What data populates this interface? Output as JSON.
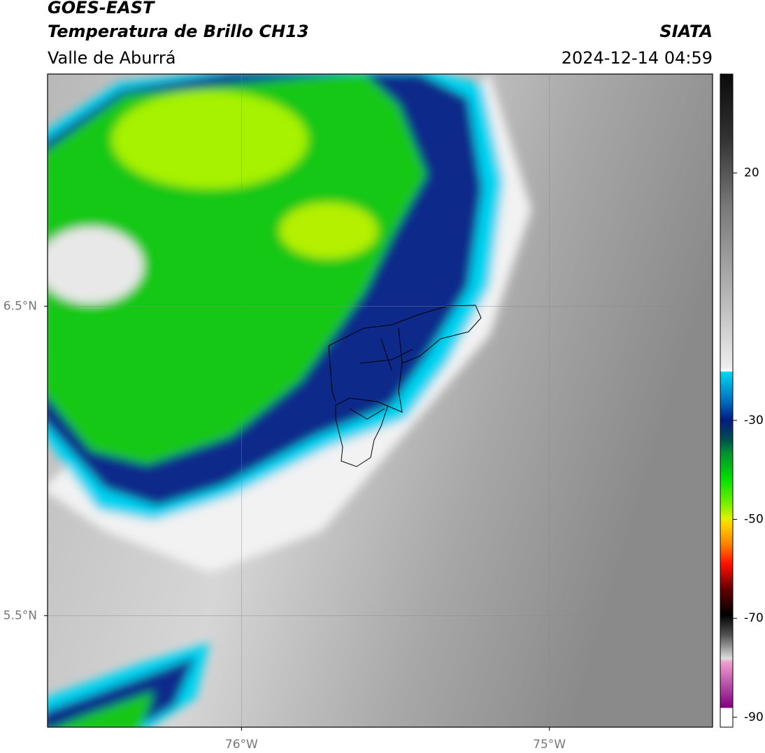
{
  "header": {
    "title": "GOES-EAST",
    "subtitle": "Temperatura de Brillo CH13",
    "source": "SIATA",
    "region": "Valle de Aburrá",
    "timestamp": "2024-12-14 04:59"
  },
  "map": {
    "xlim": [
      -76.63,
      -74.47
    ],
    "ylim": [
      5.14,
      7.25
    ],
    "xticks": [
      {
        "value": -76,
        "label": "76°W"
      },
      {
        "value": -75,
        "label": "75°W"
      }
    ],
    "yticks": [
      {
        "value": 6.5,
        "label": "6.5°N"
      },
      {
        "value": 5.5,
        "label": "5.5°N"
      }
    ],
    "grid": true
  },
  "colorbar": {
    "lim": [
      -92,
      40
    ],
    "ticks": [
      20,
      -30,
      -50,
      -70,
      -90
    ]
  }
}
